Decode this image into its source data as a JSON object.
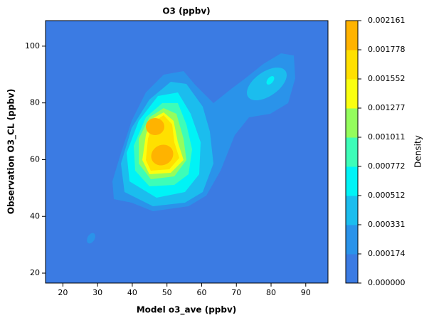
{
  "chart_data": {
    "type": "contour",
    "title": "O3 (ppbv)",
    "x_label": "Model o3_ave (ppbv)",
    "y_label": "Observation O3_CL (ppbv)",
    "xlim": [
      15,
      96.4
    ],
    "ylim": [
      16.5,
      109
    ],
    "xticks": [
      20,
      30,
      40,
      50,
      60,
      70,
      80,
      90
    ],
    "yticks": [
      20,
      40,
      60,
      80,
      100
    ],
    "colorbar": {
      "label": "Density",
      "levels": [
        {
          "value": 0,
          "label": "0.000000"
        },
        0.000174,
        0.000331,
        0.000512,
        0.000772,
        0.001011,
        0.001277,
        0.001552,
        0.001778,
        0.002161
      ],
      "colors": [
        "#3b7be3",
        "#2a93ea",
        "#1bbdee",
        "#00f3f6",
        "#3dfdb8",
        "#94fd5d",
        "#faff10",
        "#ffe000",
        "#ffb300"
      ]
    }
  }
}
